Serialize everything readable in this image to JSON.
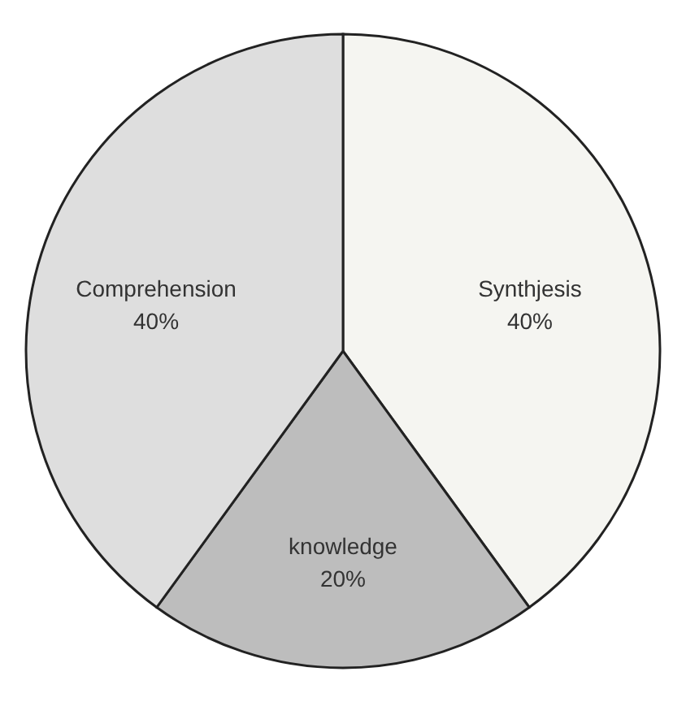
{
  "chart_data": {
    "type": "pie",
    "categories": [
      "Synthjesis",
      "knowledge",
      "Comprehension"
    ],
    "values": [
      40,
      20,
      40
    ],
    "value_labels": [
      "40%",
      "20%",
      "40%"
    ],
    "colors": [
      "#f5f5f1",
      "#bdbdbd",
      "#dedede"
    ]
  }
}
